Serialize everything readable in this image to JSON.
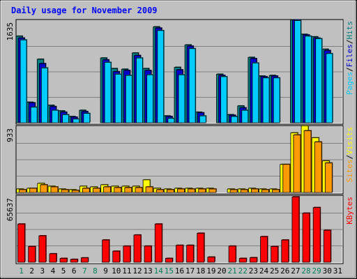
{
  "chart_data": {
    "type": "bar",
    "title": "Daily usage for November 2009",
    "days": [
      "1",
      "2",
      "3",
      "4",
      "5",
      "6",
      "7",
      "8",
      "9",
      "10",
      "11",
      "12",
      "13",
      "14",
      "15",
      "16",
      "17",
      "18",
      "19",
      "20",
      "21",
      "22",
      "23",
      "24",
      "25",
      "26",
      "27",
      "28",
      "29",
      "30",
      "31"
    ],
    "weekend_days": [
      "1",
      "7",
      "8",
      "14",
      "15",
      "21",
      "22",
      "28",
      "29"
    ],
    "panels": [
      {
        "name": "hits-files-pages",
        "ymax_label": "1635",
        "ymax": 1635,
        "legend": [
          {
            "text": "Pages",
            "color": "#00ccff"
          },
          {
            "text": "/",
            "color": "#000000"
          },
          {
            "text": "Files",
            "color": "#0000cc"
          },
          {
            "text": "/",
            "color": "#000000"
          },
          {
            "text": "Hits",
            "color": "#008080"
          }
        ],
        "series": [
          {
            "name": "Hits",
            "color": "#008080",
            "values": [
              1390,
              330,
              1020,
              280,
              190,
              100,
              200,
              0,
              1040,
              870,
              860,
              1120,
              870,
              1540,
              110,
              890,
              1250,
              170,
              0,
              780,
              130,
              270,
              1050,
              750,
              760,
              0,
              1650,
              1420,
              1380,
              1180,
              0
            ]
          },
          {
            "name": "Files",
            "color": "#0000cc",
            "values": [
              1360,
              320,
              950,
              260,
              170,
              90,
              180,
              0,
              1010,
              820,
              840,
              1080,
              840,
              1520,
              100,
              850,
              1230,
              160,
              0,
              760,
              120,
              240,
              1030,
              740,
              750,
              0,
              1650,
              1410,
              1360,
              1160,
              0
            ]
          },
          {
            "name": "Pages",
            "color": "#00ccff",
            "values": [
              1330,
              250,
              880,
              200,
              130,
              60,
              150,
              0,
              970,
              780,
              760,
              1040,
              770,
              1480,
              70,
              770,
              1190,
              110,
              0,
              740,
              100,
              200,
              960,
              720,
              720,
              0,
              1640,
              1390,
              1350,
              1110,
              0
            ]
          }
        ]
      },
      {
        "name": "visits-sites",
        "ymax_label": "933",
        "ymax": 933,
        "legend": [
          {
            "text": "Sites",
            "color": "#ff9900"
          },
          {
            "text": "/",
            "color": "#000000"
          },
          {
            "text": "Visits",
            "color": "#ffff00"
          }
        ],
        "series": [
          {
            "name": "Visits",
            "color": "#ffff00",
            "values": [
              50,
              60,
              130,
              90,
              50,
              40,
              90,
              80,
              110,
              90,
              90,
              90,
              180,
              60,
              50,
              60,
              60,
              60,
              60,
              0,
              50,
              50,
              60,
              50,
              50,
              400,
              850,
              950,
              780,
              450,
              0
            ]
          },
          {
            "name": "Sites",
            "color": "#ff9900",
            "values": [
              40,
              60,
              110,
              80,
              40,
              30,
              60,
              60,
              80,
              70,
              70,
              70,
              80,
              40,
              40,
              50,
              50,
              50,
              50,
              0,
              40,
              40,
              50,
              40,
              40,
              400,
              820,
              880,
              720,
              420,
              0
            ]
          }
        ]
      },
      {
        "name": "kbytes",
        "ymax_label": "65637",
        "ymax": 65637,
        "legend": [
          {
            "text": "KBytes",
            "color": "#ff0000"
          }
        ],
        "series": [
          {
            "name": "KBytes",
            "color": "#ff0000",
            "values": [
              38300,
              15800,
              26500,
              8500,
              3900,
              2900,
              4400,
              0,
              22300,
              11100,
              16200,
              27300,
              16200,
              38300,
              3900,
              17000,
              17000,
              29100,
              5200,
              0,
              16200,
              3900,
              4600,
              25700,
              15800,
              22300,
              65500,
              49200,
              54800,
              32000,
              0
            ]
          }
        ]
      }
    ]
  }
}
